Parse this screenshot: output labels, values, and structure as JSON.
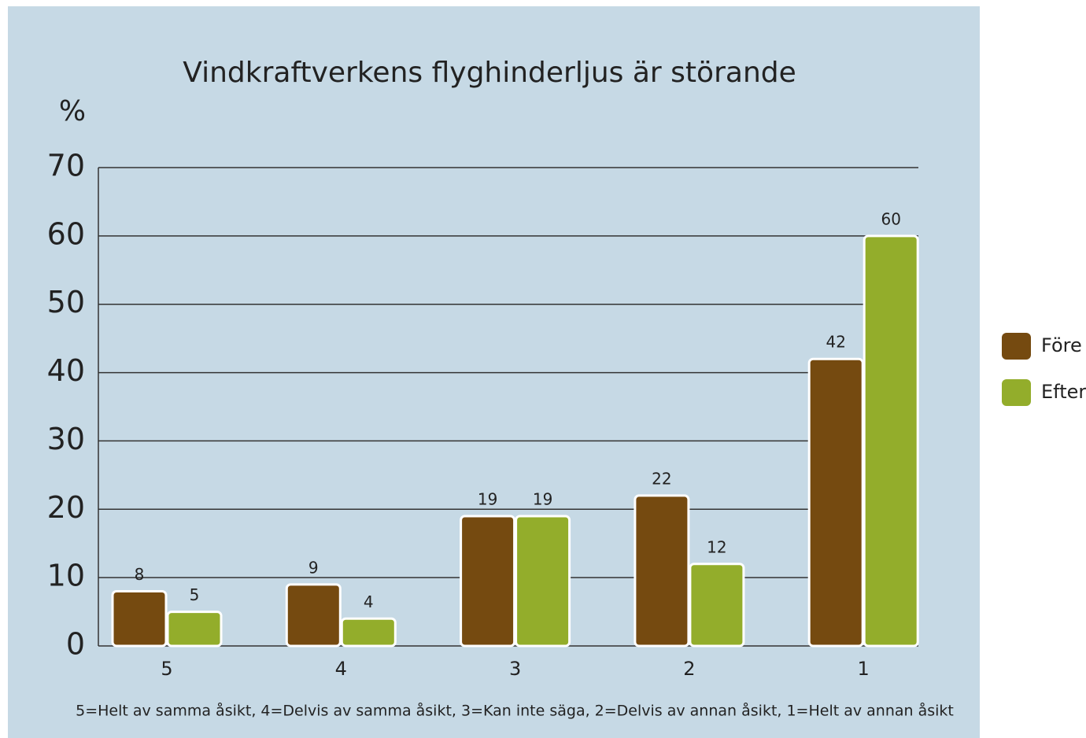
{
  "chart_data": {
    "type": "bar",
    "title": "Vindkraftverkens flyghinderljus är störande",
    "y_label": "%",
    "categories": [
      "5",
      "4",
      "3",
      "2",
      "1"
    ],
    "series": [
      {
        "name": "Före",
        "color": "#754a10",
        "values": [
          8,
          9,
          19,
          22,
          42
        ]
      },
      {
        "name": "Efter",
        "color": "#93ad2b",
        "values": [
          5,
          4,
          19,
          12,
          60
        ]
      }
    ],
    "ylim": [
      0,
      70
    ],
    "yticks": [
      0,
      10,
      20,
      30,
      40,
      50,
      60,
      70
    ],
    "grid": true,
    "legend": "right",
    "note": "5=Helt av samma åsikt, 4=Delvis av samma åsikt, 3=Kan inte säga, 2=Delvis av annan åsikt, 1=Helt av annan åsikt"
  }
}
